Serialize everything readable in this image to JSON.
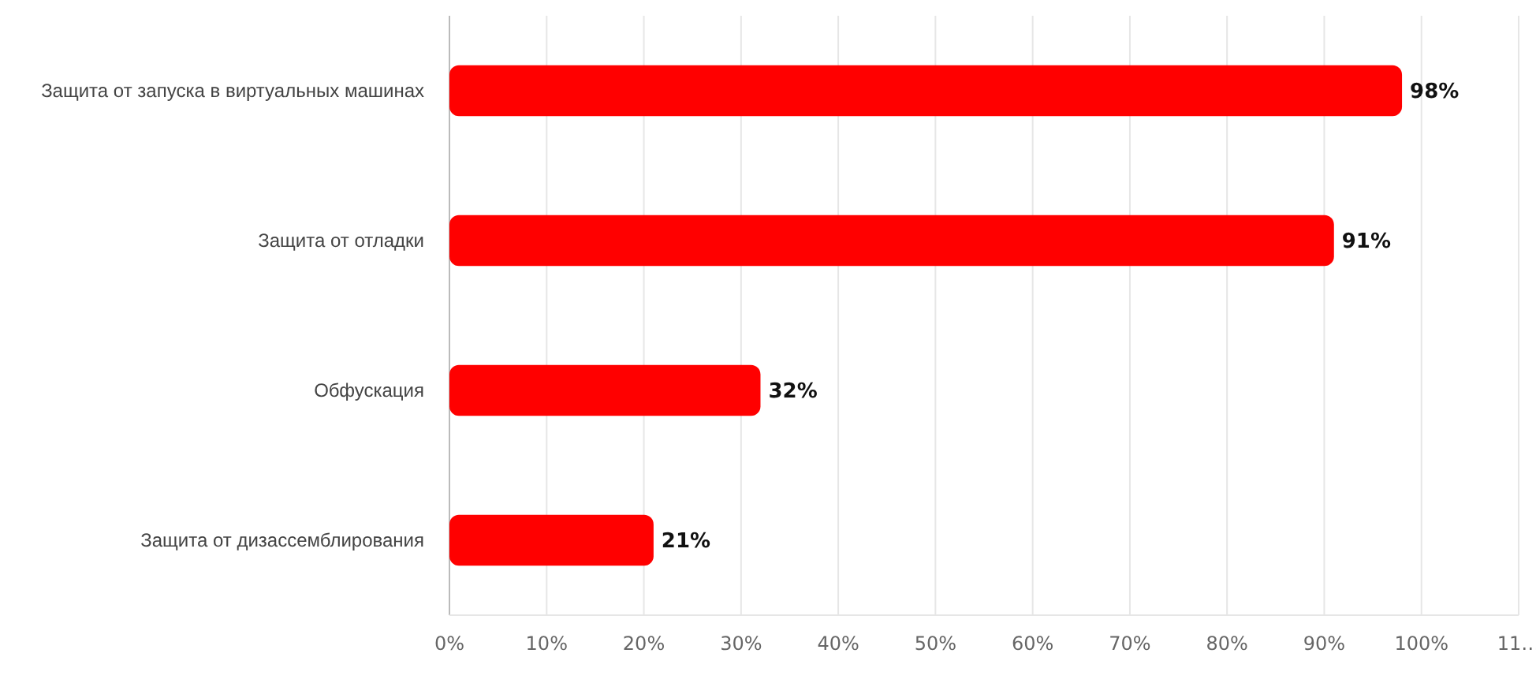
{
  "chart_data": {
    "type": "bar",
    "orientation": "horizontal",
    "categories": [
      "Защита от запуска в виртуальных машинах",
      "Защита от отладки",
      "Обфускация",
      "Защита от дизассемблирования"
    ],
    "values": [
      98,
      91,
      32,
      21
    ],
    "color": "#ff0000",
    "value_labels": [
      "98%",
      "91%",
      "32%",
      "21%"
    ],
    "xlim": [
      0,
      110
    ],
    "xticks": [
      {
        "value": 0,
        "label": "0%"
      },
      {
        "value": 10,
        "label": "10%"
      },
      {
        "value": 20,
        "label": "20%"
      },
      {
        "value": 30,
        "label": "30%"
      },
      {
        "value": 40,
        "label": "40%"
      },
      {
        "value": 50,
        "label": "50%"
      },
      {
        "value": 60,
        "label": "60%"
      },
      {
        "value": 70,
        "label": "70%"
      },
      {
        "value": 80,
        "label": "80%"
      },
      {
        "value": 90,
        "label": "90%"
      },
      {
        "value": 100,
        "label": "100%"
      },
      {
        "value": 110,
        "label": "11…"
      }
    ],
    "grid": "x"
  }
}
